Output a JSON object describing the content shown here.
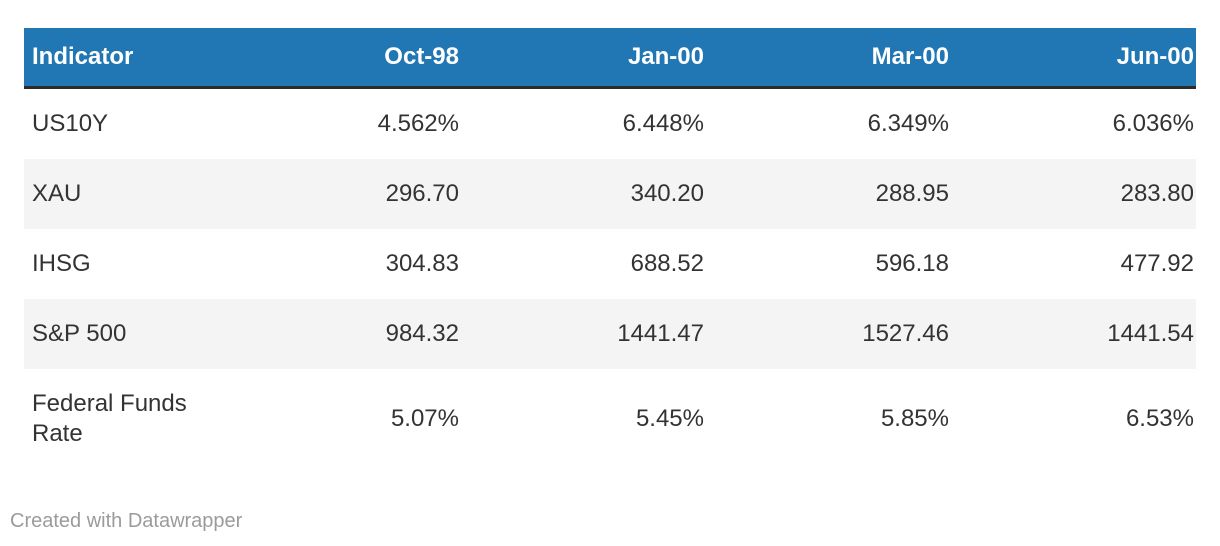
{
  "chart_data": {
    "type": "table",
    "columns": [
      "Indicator",
      "Oct-98",
      "Jan-00",
      "Mar-00",
      "Jun-00"
    ],
    "rows": [
      [
        "US10Y",
        "4.562%",
        "6.448%",
        "6.349%",
        "6.036%"
      ],
      [
        "XAU",
        "296.70",
        "340.20",
        "288.95",
        "283.80"
      ],
      [
        "IHSG",
        "304.83",
        "688.52",
        "596.18",
        "477.92"
      ],
      [
        "S&P 500",
        "984.32",
        "1441.47",
        "1527.46",
        "1441.54"
      ],
      [
        "Federal Funds Rate",
        "5.07%",
        "5.45%",
        "5.85%",
        "6.53%"
      ]
    ],
    "layout": {
      "header_alignment": "first column left, others right",
      "zebra_striping": true,
      "legend_position": "none",
      "grid": "off"
    }
  },
  "footer": {
    "attribution": "Created with Datawrapper"
  },
  "colors": {
    "header_bg": "#2077b4",
    "header_text": "#ffffff",
    "header_bottom_border": "#2b2b2b",
    "row_alt_bg": "#f4f4f4",
    "cell_text": "#333333",
    "attribution_text": "#9b9b9b",
    "page_bg": "#ffffff"
  }
}
